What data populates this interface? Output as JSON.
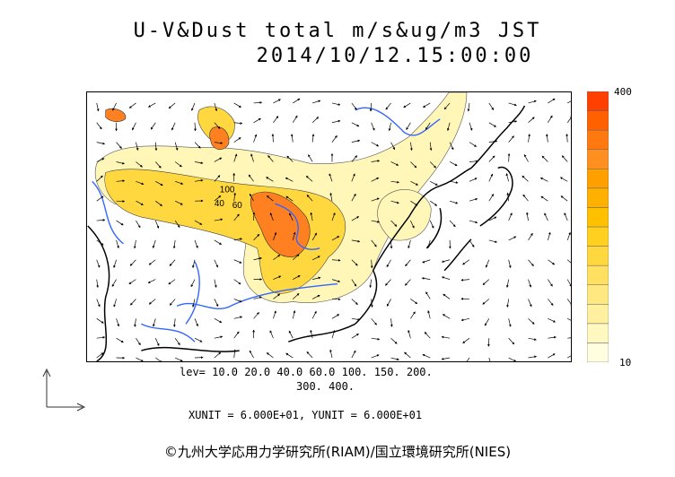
{
  "title": {
    "line1": "U-V&Dust total m/s&ug/m3 JST",
    "line2": "2014/10/12.15:00:00"
  },
  "colorbar": {
    "max_label": "400",
    "min_label": "10",
    "colors": [
      "#ffffe0",
      "#fff8c0",
      "#fff0a0",
      "#ffe880",
      "#ffe060",
      "#ffd840",
      "#ffd020",
      "#ffc000",
      "#ffb000",
      "#ffa000",
      "#ff9020",
      "#ff7810",
      "#ff6000",
      "#ff4000"
    ]
  },
  "levels": {
    "line1": "lev= 10.0 20.0 40.0 60.0 100. 150. 200.",
    "line2": "300. 400."
  },
  "units": "XUNIT = 6.000E+01, YUNIT = 6.000E+01",
  "contour_labels": [
    "40",
    "60",
    "100"
  ],
  "copyright": "©九州大学応用力学研究所(RIAM)/国立環境研究所(NIES)",
  "colors": {
    "rivers": "#3366ff",
    "coast": "#000000",
    "dust_low": "#fff8c0",
    "dust_mid": "#ffd040",
    "dust_high": "#ff7010"
  }
}
